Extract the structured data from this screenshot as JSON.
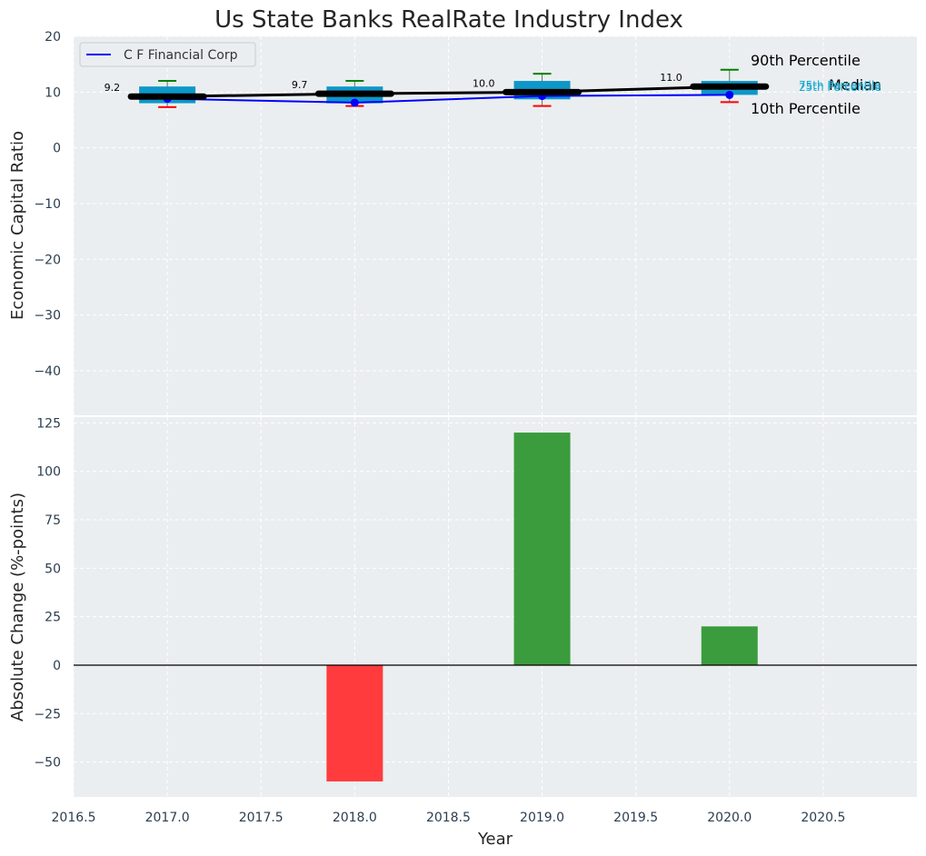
{
  "chart_data": [
    {
      "id": "top",
      "type": "box",
      "title": "Us State Banks RealRate Industry Index",
      "ylabel": "Economic Capital Ratio",
      "ylim": [
        -48,
        20
      ],
      "yticks": [
        20,
        10,
        0,
        -10,
        -20,
        -30,
        -40
      ],
      "ytick_labels": [
        "20",
        "10",
        "0",
        "−10",
        "−20",
        "−30",
        "−40"
      ],
      "grid": true,
      "legend": {
        "position": "top-left",
        "entries": [
          {
            "label": "C F Financial Corp",
            "color": "#0000ff"
          }
        ]
      },
      "boxes": [
        {
          "x": 2017.0,
          "p10": 7.3,
          "p25": 8.0,
          "median": 9.2,
          "p75": 11.0,
          "p90": 12.0
        },
        {
          "x": 2018.0,
          "p10": 7.5,
          "p25": 8.0,
          "median": 9.7,
          "p75": 11.0,
          "p90": 12.0
        },
        {
          "x": 2019.0,
          "p10": 7.5,
          "p25": 8.7,
          "median": 10.0,
          "p75": 12.0,
          "p90": 13.3
        },
        {
          "x": 2020.0,
          "p10": 8.2,
          "p25": 9.5,
          "median": 11.0,
          "p75": 12.0,
          "p90": 14.0
        }
      ],
      "median_labels": [
        "9.2",
        "9.7",
        "10.0",
        "11.0"
      ],
      "company_series": {
        "name": "C F Financial Corp",
        "x": [
          2017.0,
          2018.0,
          2019.0,
          2020.0
        ],
        "y": [
          8.8,
          8.1,
          9.3,
          9.5
        ]
      },
      "annotations": {
        "p90": "90th Percentile",
        "median": "Median",
        "p10": "10th Percentile",
        "p75": "75th Percentile",
        "p25": "25th Percentile"
      },
      "colors": {
        "box": "#0e97c9",
        "company": "#0000ff",
        "median": "#000000",
        "p90": "#008000",
        "p10": "#ff0000",
        "quartile_text": "#17a9d1"
      }
    },
    {
      "id": "bottom",
      "type": "bar",
      "xlabel": "Year",
      "ylabel": "Absolute Change (%-points)",
      "ylim": [
        -68,
        128
      ],
      "yticks": [
        125,
        100,
        75,
        50,
        25,
        0,
        -25,
        -50
      ],
      "ytick_labels": [
        "125",
        "100",
        "75",
        "50",
        "25",
        "0",
        "−25",
        "−50"
      ],
      "xlim": [
        2016.5,
        2021.0
      ],
      "xticks": [
        2016.5,
        2017.0,
        2017.5,
        2018.0,
        2018.5,
        2019.0,
        2019.5,
        2020.0,
        2020.5
      ],
      "xtick_labels": [
        "2016.5",
        "2017.0",
        "2017.5",
        "2018.0",
        "2018.5",
        "2019.0",
        "2019.5",
        "2020.0",
        "2020.5"
      ],
      "grid": true,
      "x": [
        2018.0,
        2019.0,
        2020.0
      ],
      "values": [
        -60,
        120,
        20
      ],
      "colors": {
        "positive": "#3a9c3c",
        "negative": "#ff3b3e",
        "zero_line": "#000000"
      }
    }
  ]
}
